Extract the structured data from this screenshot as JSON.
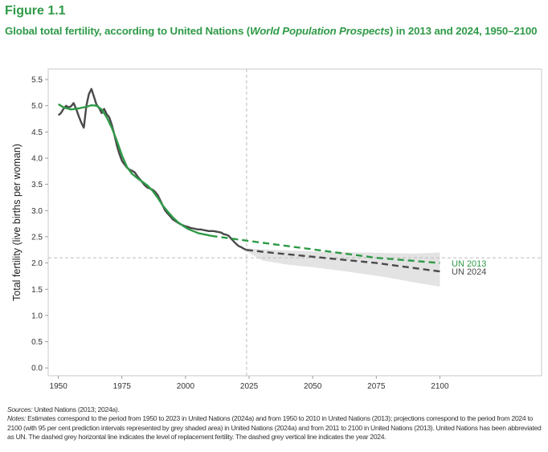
{
  "figure": {
    "label": "Figure 1.1",
    "title_before": "Global total fertility, according to United Nations (",
    "title_italic": "World Population Prospects",
    "title_after": ") in 2013 and 2024, 1950–2100"
  },
  "footnotes": {
    "sources_label": "Sources:",
    "sources_text": " United Nations (2013; 2024a).",
    "notes_label": "Notes:",
    "notes_text": " Estimates correspond to the period from 1950 to 2023 in United Nations (2024a) and from 1950 to 2010 in United Nations (2013); projections correspond to the period from 2024 to 2100 (with 95 per cent prediction intervals represented by grey shaded area) in United Nations (2024a) and from 2011 to 2100 in United Nations (2013). United Nations has been abbreviated as UN. The dashed grey horizontal line indicates the level of replacement fertility. The dashed grey vertical line indicates the year 2024."
  },
  "chart_data": {
    "type": "line",
    "ylabel": "Total fertility (live births per woman)",
    "xlabel": "",
    "xlim": [
      1946,
      2140
    ],
    "ylim": [
      -0.15,
      5.7
    ],
    "x_ticks": [
      1950,
      1975,
      2000,
      2025,
      2050,
      2075,
      2100
    ],
    "y_ticks": [
      0.0,
      0.5,
      1.0,
      1.5,
      2.0,
      2.5,
      3.0,
      3.5,
      4.0,
      4.5,
      5.0,
      5.5
    ],
    "y_tick_labels": [
      "0.0",
      "0.5",
      "1.0",
      "1.5",
      "2.0",
      "2.5",
      "3.0",
      "3.5",
      "4.0",
      "4.5",
      "5.0",
      "5.5"
    ],
    "replacement_level": 2.1,
    "reference_year": 2024,
    "colors": {
      "un2013": "#2e9a47",
      "un2024": "#4a4a4a",
      "band": "#e3e3e3",
      "ref": "#bdbdbd"
    },
    "series": [
      {
        "name": "UN 2013",
        "estimates": {
          "x": [
            1950,
            1952,
            1955,
            1958,
            1961,
            1963,
            1965,
            1967,
            1969,
            1971,
            1973,
            1975,
            1977,
            1979,
            1981,
            1983,
            1985,
            1987,
            1989,
            1991,
            1993,
            1995,
            1997,
            1999,
            2001,
            2003,
            2005,
            2007,
            2010
          ],
          "values": [
            5.03,
            4.97,
            4.93,
            4.95,
            4.98,
            5.01,
            5.0,
            4.93,
            4.78,
            4.58,
            4.33,
            4.05,
            3.83,
            3.7,
            3.62,
            3.55,
            3.48,
            3.38,
            3.25,
            3.1,
            2.98,
            2.87,
            2.78,
            2.71,
            2.65,
            2.61,
            2.57,
            2.55,
            2.52
          ]
        },
        "projection": {
          "x": [
            2010,
            2025,
            2050,
            2075,
            2100
          ],
          "values": [
            2.52,
            2.42,
            2.26,
            2.1,
            2.0
          ]
        }
      },
      {
        "name": "UN 2024",
        "estimates": {
          "x": [
            1950,
            1951,
            1952,
            1953,
            1954,
            1955,
            1956,
            1957,
            1958,
            1959,
            1960,
            1961,
            1962,
            1963,
            1964,
            1965,
            1966,
            1967,
            1968,
            1969,
            1970,
            1971,
            1972,
            1973,
            1974,
            1975,
            1976,
            1977,
            1978,
            1979,
            1980,
            1981,
            1982,
            1983,
            1984,
            1985,
            1986,
            1987,
            1988,
            1989,
            1990,
            1991,
            1992,
            1993,
            1994,
            1995,
            1996,
            1997,
            1998,
            1999,
            2000,
            2001,
            2002,
            2003,
            2004,
            2005,
            2006,
            2007,
            2008,
            2009,
            2010,
            2011,
            2012,
            2013,
            2014,
            2015,
            2016,
            2017,
            2018,
            2019,
            2020,
            2021,
            2022,
            2023,
            2024
          ],
          "values": [
            4.82,
            4.86,
            4.94,
            5.0,
            4.97,
            4.99,
            5.05,
            4.94,
            4.8,
            4.68,
            4.58,
            5.0,
            5.22,
            5.32,
            5.17,
            5.02,
            4.96,
            4.86,
            4.94,
            4.84,
            4.78,
            4.64,
            4.45,
            4.24,
            4.08,
            3.95,
            3.88,
            3.82,
            3.78,
            3.76,
            3.73,
            3.66,
            3.6,
            3.54,
            3.48,
            3.44,
            3.42,
            3.4,
            3.36,
            3.3,
            3.2,
            3.1,
            3.0,
            2.94,
            2.89,
            2.83,
            2.8,
            2.77,
            2.74,
            2.72,
            2.7,
            2.69,
            2.67,
            2.66,
            2.65,
            2.64,
            2.64,
            2.63,
            2.62,
            2.61,
            2.61,
            2.61,
            2.6,
            2.59,
            2.58,
            2.55,
            2.54,
            2.52,
            2.46,
            2.41,
            2.36,
            2.32,
            2.3,
            2.27,
            2.25
          ]
        },
        "projection": {
          "x": [
            2024,
            2035,
            2050,
            2075,
            2100
          ],
          "values": [
            2.25,
            2.19,
            2.12,
            2.0,
            1.84
          ]
        },
        "interval_95": {
          "x": [
            2024,
            2030,
            2040,
            2050,
            2060,
            2070,
            2080,
            2090,
            2100
          ],
          "lower": [
            2.22,
            2.05,
            1.97,
            1.92,
            1.86,
            1.79,
            1.72,
            1.63,
            1.55
          ],
          "upper": [
            2.28,
            2.26,
            2.24,
            2.22,
            2.21,
            2.2,
            2.19,
            2.18,
            2.2
          ]
        }
      }
    ]
  }
}
